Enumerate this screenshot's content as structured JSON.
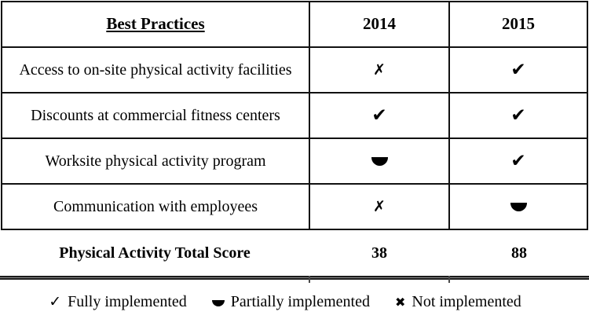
{
  "table": {
    "columns": [
      "Best Practices",
      "2014",
      "2015"
    ],
    "rows": [
      {
        "label": "Access to on-site physical activity facilities",
        "status_2014": "not",
        "status_2015": "full"
      },
      {
        "label": "Discounts at commercial fitness centers",
        "status_2014": "full",
        "status_2015": "full"
      },
      {
        "label": "Worksite physical activity program",
        "status_2014": "partial",
        "status_2015": "full"
      },
      {
        "label": "Communication with employees",
        "status_2014": "not",
        "status_2015": "partial"
      }
    ],
    "total_row": {
      "label": "Physical Activity Total Score",
      "score_2014": "38",
      "score_2015": "88"
    }
  },
  "legend": {
    "items": [
      {
        "status": "full",
        "label": "Fully implemented"
      },
      {
        "status": "partial",
        "label": "Partially implemented"
      },
      {
        "status": "not",
        "label": "Not implemented"
      }
    ]
  },
  "symbols": {
    "full": "✔",
    "not": "✗",
    "partial": "half-disc",
    "legend_full": "✓",
    "legend_not": "✖"
  },
  "colors": {
    "text": "#000000",
    "border": "#111111",
    "rule_gray": "#8f8f8f",
    "background": "#ffffff"
  }
}
